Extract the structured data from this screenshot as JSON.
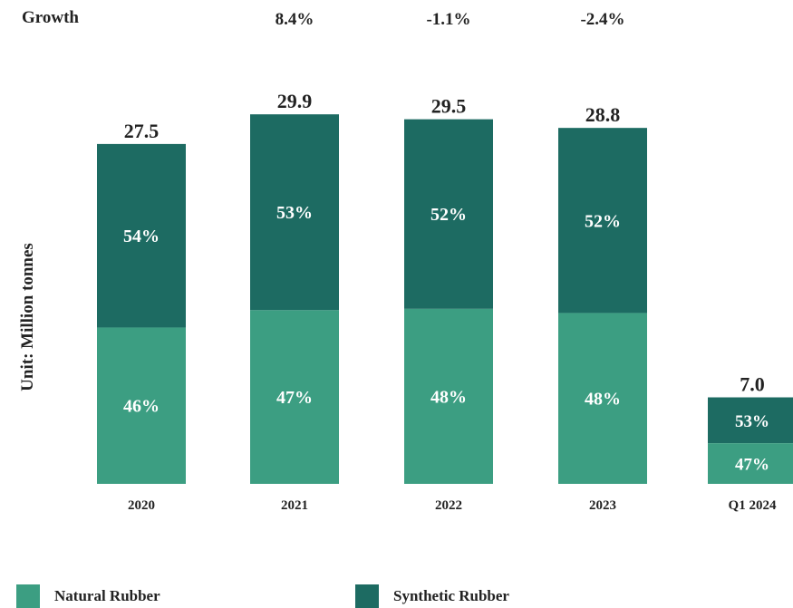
{
  "growth_label": "Growth",
  "colors": {
    "natural": "#3c9e82",
    "synthetic": "#1d6b62",
    "text": "#222222",
    "bar_label": "#ffffff"
  },
  "legend": [
    {
      "label": "Natural Rubber",
      "color": "#3c9e82"
    },
    {
      "label": "Synthetic Rubber",
      "color": "#1d6b62"
    }
  ],
  "chart_data": {
    "type": "bar",
    "stacked": true,
    "title": "",
    "xlabel": "",
    "ylabel": "Unit: Million tonnes",
    "categories": [
      "2020",
      "2021",
      "2022",
      "2023",
      "Q1 2024"
    ],
    "totals": [
      "27.5",
      "29.9",
      "29.5",
      "28.8",
      "7.0"
    ],
    "growth": [
      "",
      "8.4%",
      "-1.1%",
      "-2.4%",
      ""
    ],
    "series": [
      {
        "name": "Natural Rubber",
        "shares": [
          46,
          47,
          48,
          48,
          47
        ],
        "labels": [
          "46%",
          "47%",
          "48%",
          "48%",
          "47%"
        ]
      },
      {
        "name": "Synthetic Rubber",
        "shares": [
          54,
          53,
          52,
          52,
          53
        ],
        "labels": [
          "54%",
          "53%",
          "52%",
          "52%",
          "53%"
        ]
      }
    ],
    "legend_position": "bottom",
    "grid": false
  }
}
